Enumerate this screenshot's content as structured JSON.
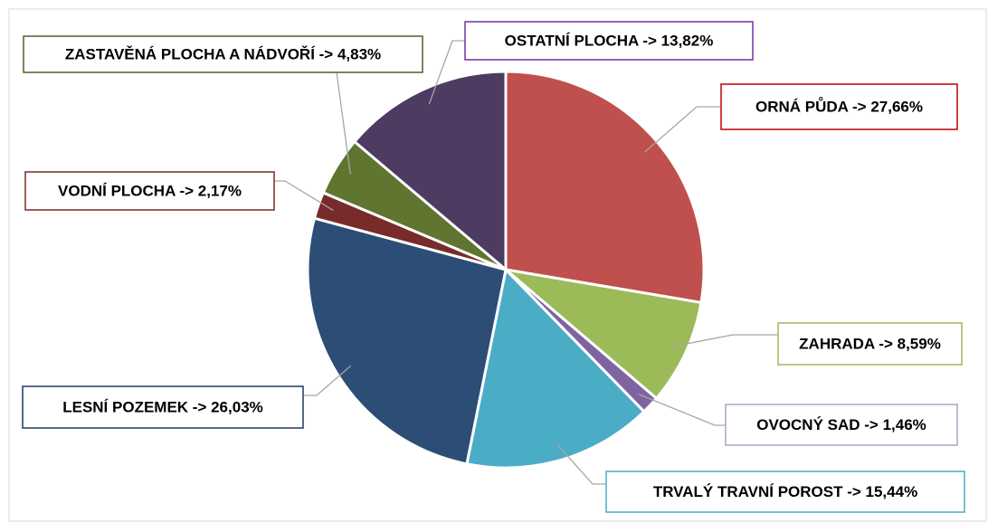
{
  "chart_data": {
    "type": "pie",
    "values": [
      27.66,
      8.59,
      1.46,
      15.44,
      26.03,
      2.17,
      4.83,
      13.82
    ],
    "value_labels": [
      "ORNÁ PŮDA -> 27,66%",
      "ZAHRADA -> 8,59%",
      "OVOCNÝ SAD -> 1,46%",
      "TRVALÝ TRAVNÍ POROST -> 15,44%",
      "LESNÍ POZEMEK -> 26,03%",
      "VODNÍ PLOCHA -> 2,17%",
      "ZASTAVĚNÁ PLOCHA A NÁDVOŘÍ -> 4,83%",
      "OSTATNÍ PLOCHA -> 13,82%"
    ],
    "colors": [
      "#c0504d",
      "#9bbb59",
      "#8064a2",
      "#4bacc6",
      "#2c4d75",
      "#772c2a",
      "#5f7530",
      "#4d3b62"
    ],
    "label_border_colors": [
      "#c00000",
      "#9bbb59",
      "#b3a2c7",
      "#4bacc6",
      "#1f3864",
      "#772c2a",
      "#4f6228",
      "#7030a0"
    ]
  }
}
